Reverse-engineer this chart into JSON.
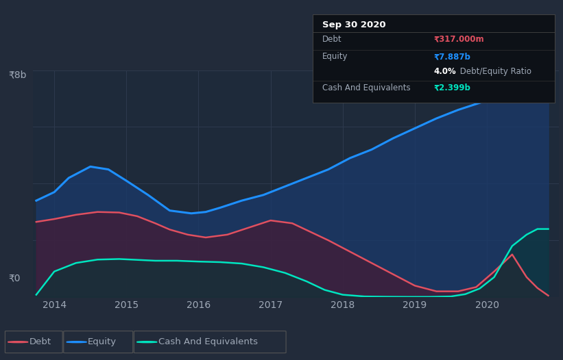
{
  "background_color": "#222b3a",
  "plot_bg_color": "#1e2a3a",
  "ylabel_top": "₹8b",
  "ylabel_bottom": "₹0",
  "xlabel_ticks": [
    2014,
    2015,
    2016,
    2017,
    2018,
    2019,
    2020
  ],
  "ylim": [
    0,
    8000000000
  ],
  "xlim": [
    2013.7,
    2021.0
  ],
  "equity": {
    "x": [
      2013.75,
      2014.0,
      2014.2,
      2014.5,
      2014.75,
      2015.0,
      2015.3,
      2015.6,
      2015.9,
      2016.1,
      2016.3,
      2016.6,
      2016.9,
      2017.2,
      2017.5,
      2017.8,
      2018.1,
      2018.4,
      2018.7,
      2019.0,
      2019.3,
      2019.6,
      2019.9,
      2020.2,
      2020.5,
      2020.75,
      2020.85
    ],
    "y": [
      3400000000,
      3700000000,
      4200000000,
      4600000000,
      4500000000,
      4100000000,
      3600000000,
      3050000000,
      2950000000,
      3000000000,
      3150000000,
      3400000000,
      3600000000,
      3900000000,
      4200000000,
      4500000000,
      4900000000,
      5200000000,
      5600000000,
      5950000000,
      6300000000,
      6600000000,
      6850000000,
      7100000000,
      7450000000,
      7750000000,
      7887000000
    ],
    "color": "#1e90ff",
    "fill_alpha": 0.75,
    "fill_color": "#1a3a6b",
    "label": "Equity"
  },
  "debt": {
    "x": [
      2013.75,
      2014.0,
      2014.3,
      2014.6,
      2014.9,
      2015.15,
      2015.4,
      2015.6,
      2015.85,
      2016.1,
      2016.4,
      2016.7,
      2017.0,
      2017.3,
      2017.55,
      2017.8,
      2018.1,
      2018.4,
      2018.7,
      2019.0,
      2019.3,
      2019.6,
      2019.85,
      2020.1,
      2020.35,
      2020.55,
      2020.7,
      2020.85
    ],
    "y": [
      2650000000,
      2750000000,
      2900000000,
      3000000000,
      2980000000,
      2850000000,
      2600000000,
      2380000000,
      2200000000,
      2100000000,
      2200000000,
      2450000000,
      2700000000,
      2600000000,
      2300000000,
      2000000000,
      1600000000,
      1200000000,
      800000000,
      400000000,
      200000000,
      200000000,
      350000000,
      900000000,
      1500000000,
      700000000,
      317000000,
      50000000
    ],
    "color": "#e05060",
    "fill_alpha": 0.65,
    "fill_color": "#4a1830",
    "label": "Debt"
  },
  "cash": {
    "x": [
      2013.75,
      2014.0,
      2014.3,
      2014.6,
      2014.9,
      2015.15,
      2015.4,
      2015.7,
      2016.0,
      2016.3,
      2016.6,
      2016.9,
      2017.2,
      2017.5,
      2017.75,
      2018.0,
      2018.3,
      2018.6,
      2018.9,
      2019.2,
      2019.5,
      2019.7,
      2019.9,
      2020.1,
      2020.35,
      2020.55,
      2020.7,
      2020.85
    ],
    "y": [
      80000000,
      900000000,
      1200000000,
      1320000000,
      1340000000,
      1310000000,
      1280000000,
      1280000000,
      1250000000,
      1230000000,
      1180000000,
      1050000000,
      850000000,
      550000000,
      250000000,
      80000000,
      20000000,
      10000000,
      5000000,
      5000000,
      20000000,
      100000000,
      300000000,
      700000000,
      1800000000,
      2200000000,
      2399000000,
      2399000000
    ],
    "color": "#00e5c0",
    "fill_alpha": 0.6,
    "fill_color": "#0a3535",
    "label": "Cash And Equivalents"
  },
  "tooltip": {
    "title": "Sep 30 2020",
    "rows": [
      {
        "label": "Debt",
        "value": "₹317.000m",
        "value_color": "#e05060",
        "sep_after": true
      },
      {
        "label": "Equity",
        "value": "₹7.887b",
        "value_color": "#1e90ff",
        "sep_after": false
      },
      {
        "label": "",
        "value": "4.0%",
        "value_color": "#ffffff",
        "extra": " Debt/Equity Ratio",
        "sep_after": true
      },
      {
        "label": "Cash And Equivalents",
        "value": "₹2.399b",
        "value_color": "#00e5c0",
        "sep_after": false
      }
    ],
    "bg_color": "#0d1117",
    "border_color": "#444444",
    "title_color": "#ffffff",
    "label_color": "#a0aab8"
  },
  "legend_items": [
    {
      "label": "Debt",
      "color": "#e05060"
    },
    {
      "label": "Equity",
      "color": "#1e90ff"
    },
    {
      "label": "Cash And Equivalents",
      "color": "#00e5c0"
    }
  ],
  "grid_color": "#2e3a4e",
  "text_color": "#a0aab8",
  "tick_color": "#a0aab8"
}
